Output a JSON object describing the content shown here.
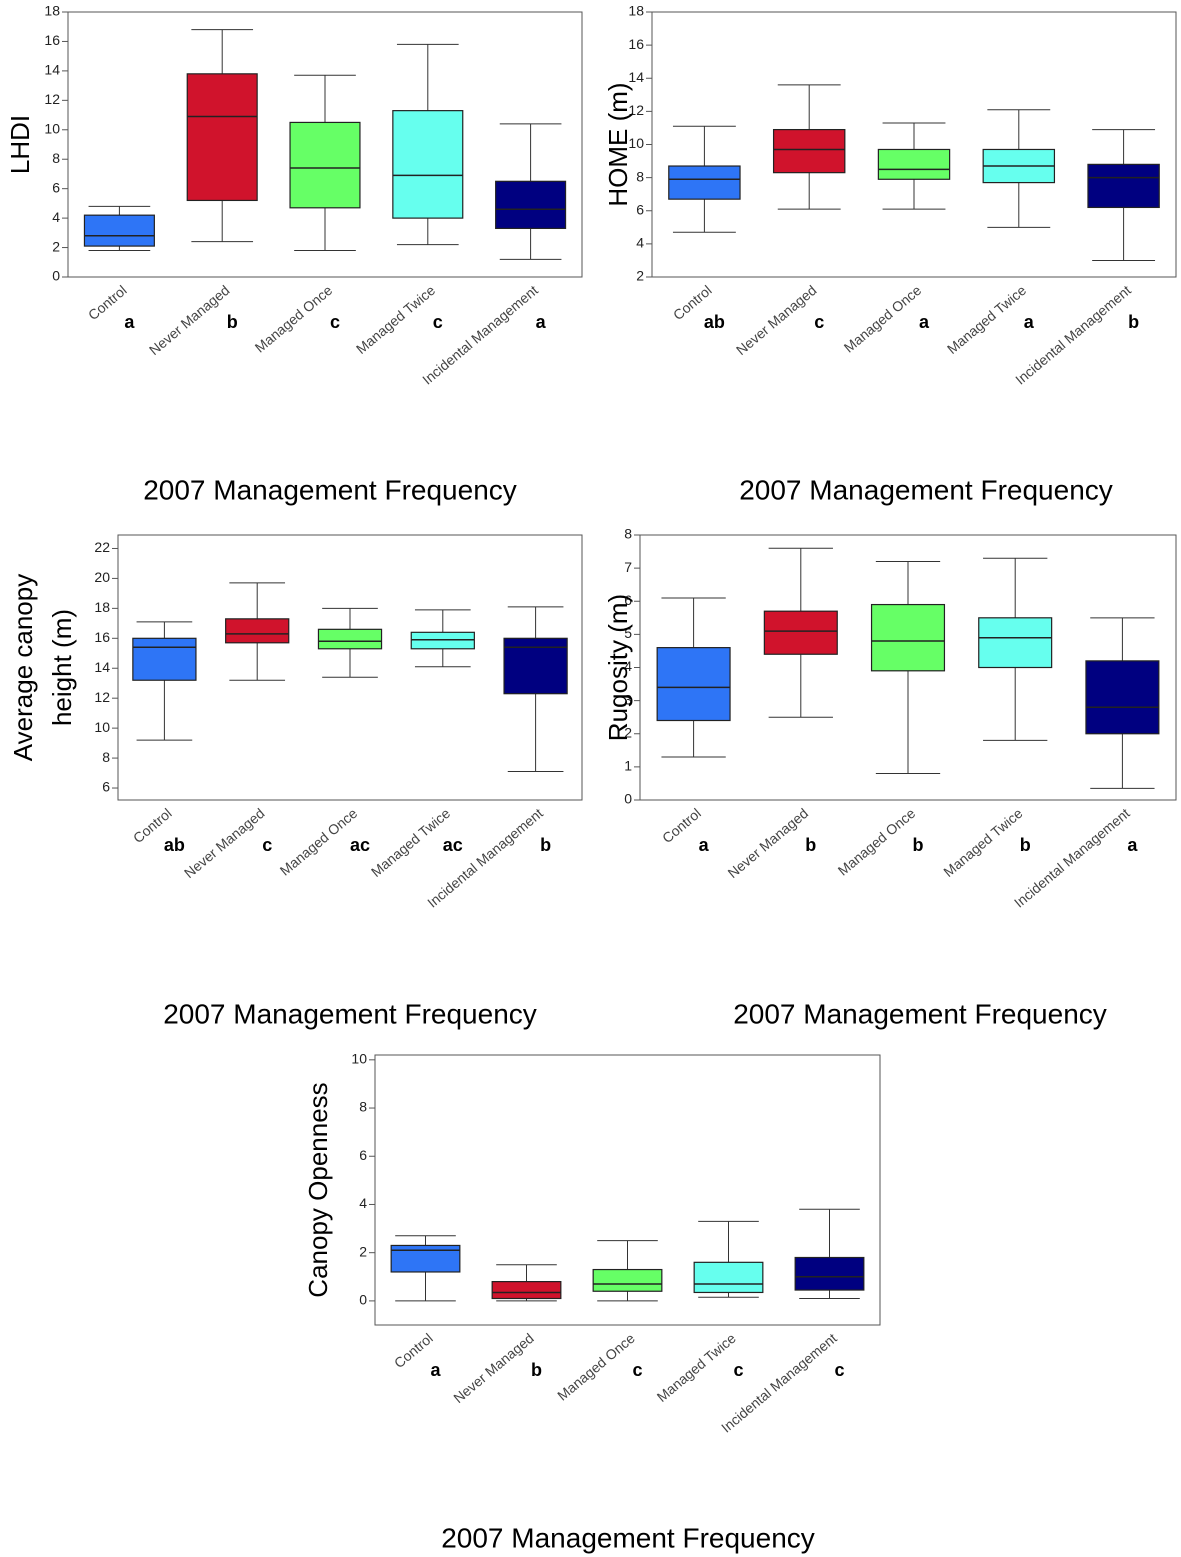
{
  "chart_data": [
    {
      "type": "box",
      "ylabel": [
        "LHDI"
      ],
      "xlabel": "2007 Management Frequency",
      "categories": [
        "Control",
        "Never Managed",
        "Managed Once",
        "Managed Twice",
        "Incidental Management"
      ],
      "colors": [
        "#2e75f6",
        "#d0132c",
        "#66ff66",
        "#66ffee",
        "#000080"
      ],
      "letters": [
        "a",
        "b",
        "c",
        "c",
        "a"
      ],
      "boxes": [
        {
          "min": 1.8,
          "q1": 2.1,
          "median": 2.8,
          "q3": 4.2,
          "max": 4.8
        },
        {
          "min": 2.4,
          "q1": 5.2,
          "median": 10.9,
          "q3": 13.8,
          "max": 16.8
        },
        {
          "min": 1.8,
          "q1": 4.7,
          "median": 7.4,
          "q3": 10.5,
          "max": 13.7
        },
        {
          "min": 2.2,
          "q1": 4.0,
          "median": 6.9,
          "q3": 11.3,
          "max": 15.8
        },
        {
          "min": 1.2,
          "q1": 3.3,
          "median": 4.6,
          "q3": 6.5,
          "max": 10.4
        }
      ],
      "ylim": [
        0,
        18
      ],
      "yticks": [
        0,
        2,
        4,
        6,
        8,
        10,
        12,
        14,
        16,
        18
      ]
    },
    {
      "type": "box",
      "ylabel": [
        "HOME (m)"
      ],
      "xlabel": "2007 Management Frequency",
      "categories": [
        "Control",
        "Never Managed",
        "Managed Once",
        "Managed Twice",
        "Incidental Management"
      ],
      "colors": [
        "#2e75f6",
        "#d0132c",
        "#66ff66",
        "#66ffee",
        "#000080"
      ],
      "letters": [
        "ab",
        "c",
        "a",
        "a",
        "b"
      ],
      "boxes": [
        {
          "min": 4.7,
          "q1": 6.7,
          "median": 7.9,
          "q3": 8.7,
          "max": 11.1
        },
        {
          "min": 6.1,
          "q1": 8.3,
          "median": 9.7,
          "q3": 10.9,
          "max": 13.6
        },
        {
          "min": 6.1,
          "q1": 7.9,
          "median": 8.5,
          "q3": 9.7,
          "max": 11.3
        },
        {
          "min": 5.0,
          "q1": 7.7,
          "median": 8.7,
          "q3": 9.7,
          "max": 12.1
        },
        {
          "min": 3.0,
          "q1": 6.2,
          "median": 8.0,
          "q3": 8.8,
          "max": 10.9
        }
      ],
      "ylim": [
        2,
        18
      ],
      "yticks": [
        2,
        4,
        6,
        8,
        10,
        12,
        14,
        16,
        18
      ]
    },
    {
      "type": "box",
      "ylabel": [
        "Average canopy",
        "height (m)"
      ],
      "xlabel": "2007 Management Frequency",
      "categories": [
        "Control",
        "Never Managed",
        "Managed Once",
        "Managed Twice",
        "Incidental Management"
      ],
      "colors": [
        "#2e75f6",
        "#d0132c",
        "#66ff66",
        "#66ffee",
        "#000080"
      ],
      "letters": [
        "ab",
        "c",
        "ac",
        "ac",
        "b"
      ],
      "boxes": [
        {
          "min": 9.2,
          "q1": 13.2,
          "median": 15.4,
          "q3": 16.0,
          "max": 17.1
        },
        {
          "min": 13.2,
          "q1": 15.7,
          "median": 16.3,
          "q3": 17.3,
          "max": 19.7
        },
        {
          "min": 13.4,
          "q1": 15.3,
          "median": 15.8,
          "q3": 16.6,
          "max": 18.0
        },
        {
          "min": 14.1,
          "q1": 15.3,
          "median": 15.9,
          "q3": 16.4,
          "max": 17.9
        },
        {
          "min": 7.1,
          "q1": 12.3,
          "median": 15.4,
          "q3": 16.0,
          "max": 18.1
        }
      ],
      "ylim": [
        5.2,
        22.9
      ],
      "yticks": [
        6,
        8,
        10,
        12,
        14,
        16,
        18,
        20,
        22
      ]
    },
    {
      "type": "box",
      "ylabel": [
        "Rugosity (m)"
      ],
      "xlabel": "2007 Management Frequency",
      "categories": [
        "Control",
        "Never Managed",
        "Managed Once",
        "Managed Twice",
        "Incidental Management"
      ],
      "colors": [
        "#2e75f6",
        "#d0132c",
        "#66ff66",
        "#66ffee",
        "#000080"
      ],
      "letters": [
        "a",
        "b",
        "b",
        "b",
        "a"
      ],
      "boxes": [
        {
          "min": 1.3,
          "q1": 2.4,
          "median": 3.4,
          "q3": 4.6,
          "max": 6.1
        },
        {
          "min": 2.5,
          "q1": 4.4,
          "median": 5.1,
          "q3": 5.7,
          "max": 7.6
        },
        {
          "min": 0.8,
          "q1": 3.9,
          "median": 4.8,
          "q3": 5.9,
          "max": 7.2
        },
        {
          "min": 1.8,
          "q1": 4.0,
          "median": 4.9,
          "q3": 5.5,
          "max": 7.3
        },
        {
          "min": 0.35,
          "q1": 2.0,
          "median": 2.8,
          "q3": 4.2,
          "max": 5.5
        }
      ],
      "ylim": [
        0,
        8
      ],
      "yticks": [
        0,
        1,
        2,
        3,
        4,
        5,
        6,
        7,
        8
      ]
    },
    {
      "type": "box",
      "ylabel": [
        "Canopy Openness"
      ],
      "xlabel": "2007 Management Frequency",
      "categories": [
        "Control",
        "Never Managed",
        "Managed Once",
        "Managed Twice",
        "Incidental Management"
      ],
      "colors": [
        "#2e75f6",
        "#d0132c",
        "#66ff66",
        "#66ffee",
        "#000080"
      ],
      "letters": [
        "a",
        "b",
        "c",
        "c",
        "c"
      ],
      "boxes": [
        {
          "min": 0,
          "q1": 1.2,
          "median": 2.1,
          "q3": 2.3,
          "max": 2.7
        },
        {
          "min": 0,
          "q1": 0.1,
          "median": 0.35,
          "q3": 0.8,
          "max": 1.5
        },
        {
          "min": 0,
          "q1": 0.4,
          "median": 0.7,
          "q3": 1.3,
          "max": 2.5
        },
        {
          "min": 0.15,
          "q1": 0.35,
          "median": 0.7,
          "q3": 1.6,
          "max": 3.3
        },
        {
          "min": 0.1,
          "q1": 0.45,
          "median": 1.0,
          "q3": 1.8,
          "max": 3.8
        }
      ],
      "ylim": [
        -1,
        10.2
      ],
      "yticks": [
        0,
        2,
        4,
        6,
        8,
        10
      ]
    }
  ]
}
